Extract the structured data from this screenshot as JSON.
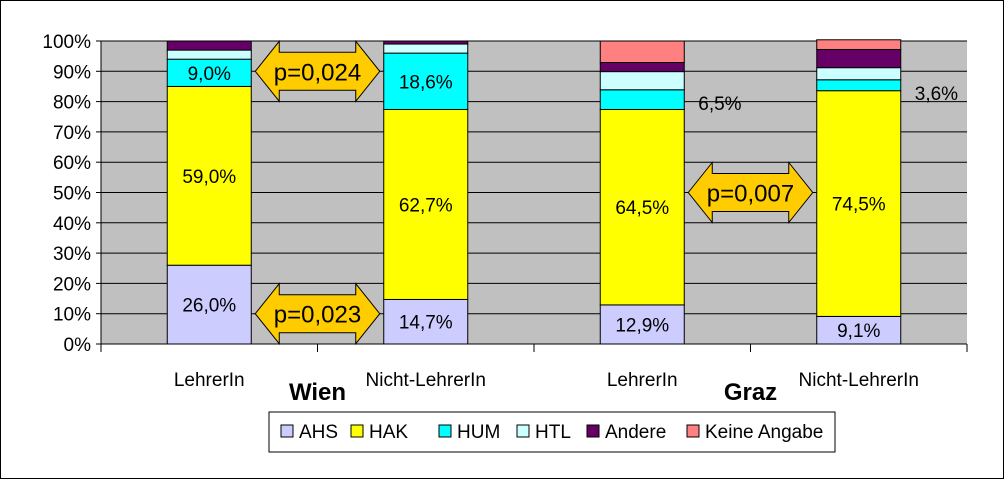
{
  "chart_data": {
    "type": "bar",
    "stacked": true,
    "categories": [
      "LehrerIn",
      "Nicht-LehrerIn",
      "LehrerIn",
      "Nicht-LehrerIn"
    ],
    "groups": [
      {
        "label": "Wien",
        "categories": [
          0,
          1
        ]
      },
      {
        "label": "Graz",
        "categories": [
          2,
          3
        ]
      }
    ],
    "ylim": [
      0,
      100
    ],
    "yticks": [
      "0%",
      "10%",
      "20%",
      "30%",
      "40%",
      "50%",
      "60%",
      "70%",
      "80%",
      "90%",
      "100%"
    ],
    "grid": true,
    "legend_position": "bottom",
    "series": [
      {
        "name": "AHS",
        "color": "#ccccff",
        "values": [
          26.0,
          14.7,
          12.9,
          9.1
        ]
      },
      {
        "name": "HAK",
        "color": "#ffff00",
        "values": [
          59.0,
          62.7,
          64.5,
          74.5
        ]
      },
      {
        "name": "HUM",
        "color": "#00ffff",
        "values": [
          9.0,
          18.6,
          6.5,
          3.6
        ]
      },
      {
        "name": "HTL",
        "color": "#ccffff",
        "values": [
          3.0,
          3.0,
          6.0,
          4.0
        ]
      },
      {
        "name": "Andere",
        "color": "#660066",
        "values": [
          3.0,
          1.0,
          3.0,
          6.0
        ]
      },
      {
        "name": "Keine Angabe",
        "color": "#ff8080",
        "values": [
          0.0,
          0.0,
          7.1,
          3.2
        ]
      }
    ],
    "data_labels": [
      {
        "text": "26,0%",
        "category": 0,
        "series": 0
      },
      {
        "text": "59,0%",
        "category": 0,
        "series": 1
      },
      {
        "text": "9,0%",
        "category": 0,
        "series": 2
      },
      {
        "text": "14,7%",
        "category": 1,
        "series": 0
      },
      {
        "text": "62,7%",
        "category": 1,
        "series": 1
      },
      {
        "text": "18,6%",
        "category": 1,
        "series": 2
      },
      {
        "text": "12,9%",
        "category": 2,
        "series": 0
      },
      {
        "text": "64,5%",
        "category": 2,
        "series": 1
      },
      {
        "text": "6,5%",
        "category": 2,
        "series": 2,
        "outside": true
      },
      {
        "text": "9,1%",
        "category": 3,
        "series": 0
      },
      {
        "text": "74,5%",
        "category": 3,
        "series": 1
      },
      {
        "text": "3,6%",
        "category": 3,
        "series": 2,
        "outside": true
      }
    ],
    "annotations": [
      {
        "text": "p=0,024",
        "between": [
          0,
          1
        ],
        "level": 90
      },
      {
        "text": "p=0,023",
        "between": [
          0,
          1
        ],
        "level": 10
      },
      {
        "text": "p=0,007",
        "between": [
          2,
          3
        ],
        "level": 50
      }
    ]
  }
}
